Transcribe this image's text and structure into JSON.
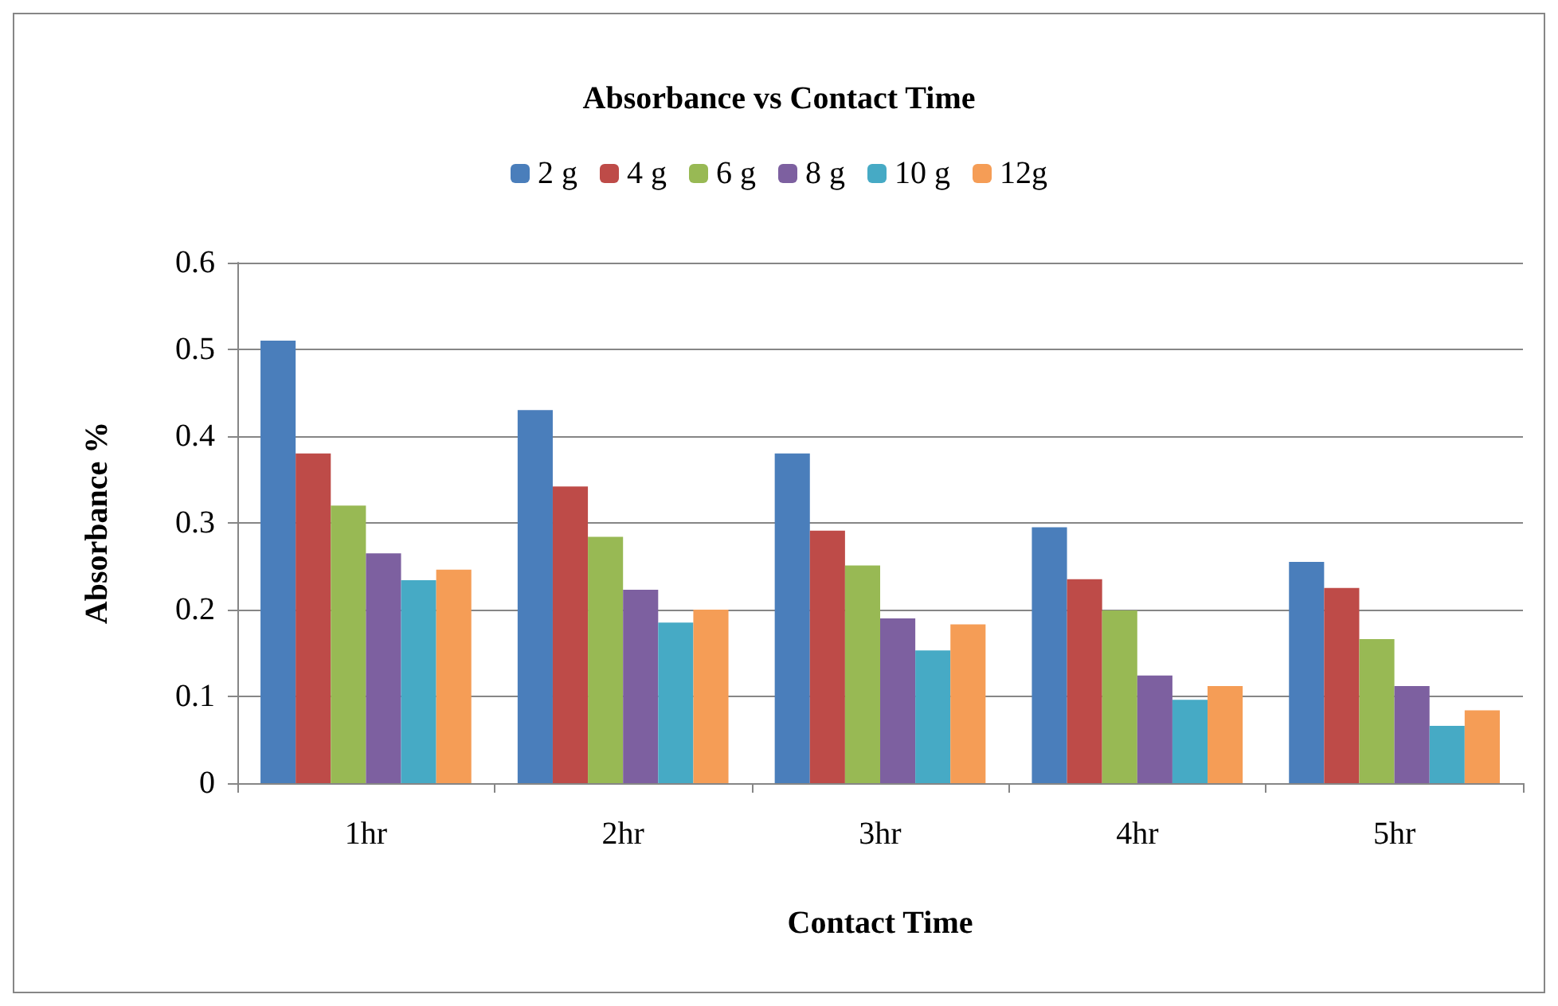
{
  "chart_data": {
    "type": "bar",
    "title": "Absorbance vs Contact Time",
    "xlabel": "Contact Time",
    "ylabel": "Absorbance %",
    "categories": [
      "1hr",
      "2hr",
      "3hr",
      "4hr",
      "5hr"
    ],
    "series": [
      {
        "name": "2 g",
        "color": "#4a7ebb",
        "values": [
          0.51,
          0.43,
          0.38,
          0.295,
          0.255
        ]
      },
      {
        "name": "4 g",
        "color": "#be4b48",
        "values": [
          0.38,
          0.342,
          0.291,
          0.235,
          0.225
        ]
      },
      {
        "name": "6 g",
        "color": "#98b954",
        "values": [
          0.32,
          0.284,
          0.251,
          0.199,
          0.166
        ]
      },
      {
        "name": "8 g",
        "color": "#7d60a0",
        "values": [
          0.265,
          0.223,
          0.19,
          0.124,
          0.112
        ]
      },
      {
        "name": "10 g",
        "color": "#46aac5",
        "values": [
          0.234,
          0.185,
          0.153,
          0.096,
          0.066
        ]
      },
      {
        "name": "12g",
        "color": "#f59d56",
        "values": [
          0.246,
          0.2,
          0.183,
          0.112,
          0.084
        ]
      }
    ],
    "ylim": [
      0,
      0.6
    ],
    "yticks": [
      0,
      0.1,
      0.2,
      0.3,
      0.4,
      0.5,
      0.6
    ],
    "grid": "y",
    "legend": "top"
  }
}
